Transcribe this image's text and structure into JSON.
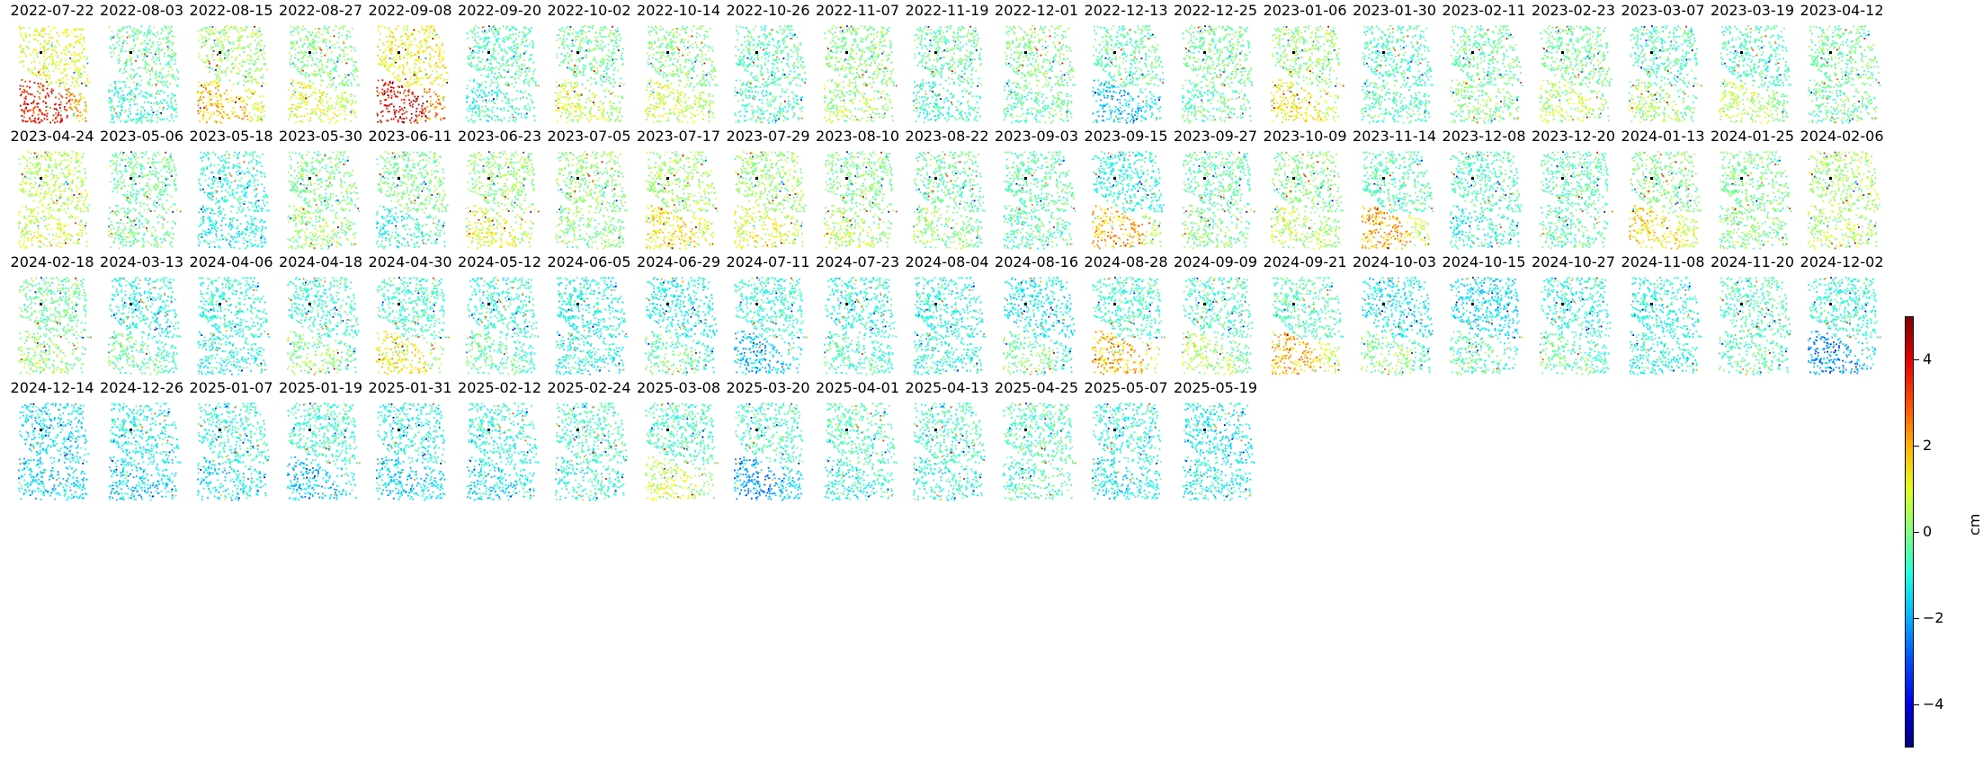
{
  "chart_data": {
    "type": "heatmap",
    "description_note": "",
    "dates": [
      "2022-07-22",
      "2022-08-03",
      "2022-08-15",
      "2022-08-27",
      "2022-09-08",
      "2022-09-20",
      "2022-10-02",
      "2022-10-14",
      "2022-10-26",
      "2022-11-07",
      "2022-11-19",
      "2022-12-01",
      "2022-12-13",
      "2022-12-25",
      "2023-01-06",
      "2023-01-30",
      "2023-02-11",
      "2023-02-23",
      "2023-03-07",
      "2023-03-19",
      "2023-04-12",
      "2023-04-24",
      "2023-05-06",
      "2023-05-18",
      "2023-05-30",
      "2023-06-11",
      "2023-06-23",
      "2023-07-05",
      "2023-07-17",
      "2023-07-29",
      "2023-08-10",
      "2023-08-22",
      "2023-09-03",
      "2023-09-15",
      "2023-09-27",
      "2023-10-09",
      "2023-11-14",
      "2023-12-08",
      "2023-12-20",
      "2024-01-13",
      "2024-01-25",
      "2024-02-06",
      "2024-02-18",
      "2024-03-13",
      "2024-04-06",
      "2024-04-18",
      "2024-04-30",
      "2024-05-12",
      "2024-06-05",
      "2024-06-29",
      "2024-07-11",
      "2024-07-23",
      "2024-08-04",
      "2024-08-16",
      "2024-08-28",
      "2024-09-09",
      "2024-09-21",
      "2024-10-03",
      "2024-10-15",
      "2024-10-27",
      "2024-11-08",
      "2024-11-20",
      "2024-12-02",
      "2024-12-14",
      "2024-12-26",
      "2025-01-07",
      "2025-01-19",
      "2025-01-31",
      "2025-02-12",
      "2025-02-24",
      "2025-03-08",
      "2025-03-20",
      "2025-04-01",
      "2025-04-13",
      "2025-04-25",
      "2025-05-07",
      "2025-05-19"
    ],
    "panel_levels": {
      "top": [
        1.0,
        -0.3,
        0.3,
        0.0,
        1.2,
        -0.5,
        -0.2,
        0.0,
        -0.5,
        0.0,
        -0.3,
        0.0,
        -0.4,
        -0.2,
        0.2,
        -0.6,
        -0.3,
        -0.2,
        -0.5,
        -0.6,
        -0.2,
        0.5,
        -0.2,
        -0.9,
        -0.1,
        -0.1,
        0.2,
        0.1,
        0.3,
        0.2,
        0.0,
        -0.3,
        -0.4,
        -1.0,
        -0.3,
        0.0,
        -0.5,
        -0.6,
        -0.4,
        0.0,
        -0.1,
        0.3,
        -0.2,
        -1.0,
        -0.9,
        -0.8,
        -0.7,
        -0.8,
        -1.1,
        -1.2,
        -0.8,
        -0.9,
        -1.0,
        -1.3,
        -0.7,
        -0.6,
        -0.5,
        -1.3,
        -1.4,
        -0.9,
        -1.0,
        -0.6,
        -0.8,
        -1.4,
        -1.1,
        -0.9,
        -0.7,
        -1.0,
        -0.9,
        -0.7,
        -0.6,
        -0.6,
        -0.5,
        -0.7,
        -0.5,
        -0.9,
        -1.2
      ],
      "bottom": [
        3.5,
        -0.8,
        1.8,
        1.0,
        3.8,
        -0.9,
        0.8,
        0.8,
        -0.7,
        0.3,
        -0.8,
        -0.4,
        -1.8,
        -0.4,
        1.3,
        -0.5,
        0.0,
        0.5,
        0.3,
        0.6,
        -0.3,
        0.8,
        -0.2,
        -1.2,
        0.2,
        -1.0,
        1.0,
        0.0,
        1.4,
        1.0,
        0.5,
        0.1,
        -0.5,
        2.0,
        0.0,
        0.5,
        2.1,
        -1.0,
        -0.4,
        1.5,
        0.0,
        0.4,
        0.2,
        -0.3,
        -1.0,
        0.0,
        1.3,
        -0.4,
        -1.0,
        -0.4,
        -1.8,
        -0.6,
        -1.0,
        -0.2,
        2.0,
        0.4,
        2.0,
        0.0,
        -0.4,
        -0.3,
        -1.0,
        -0.5,
        -2.3,
        -1.5,
        -1.6,
        -1.4,
        -1.8,
        -1.6,
        -1.4,
        -0.9,
        0.8,
        -2.2,
        -1.0,
        -1.0,
        -0.6,
        -1.3,
        -1.1
      ]
    },
    "colorbar": {
      "label": "cm",
      "min": -5,
      "max": 5,
      "colormap": "jet",
      "ticks": [
        4,
        2,
        0,
        -2,
        -4
      ],
      "tick_labels": [
        "4",
        "2",
        "0",
        "−2",
        "−4"
      ]
    },
    "grid": false,
    "layout": "21 panels per row, 4 rows"
  }
}
